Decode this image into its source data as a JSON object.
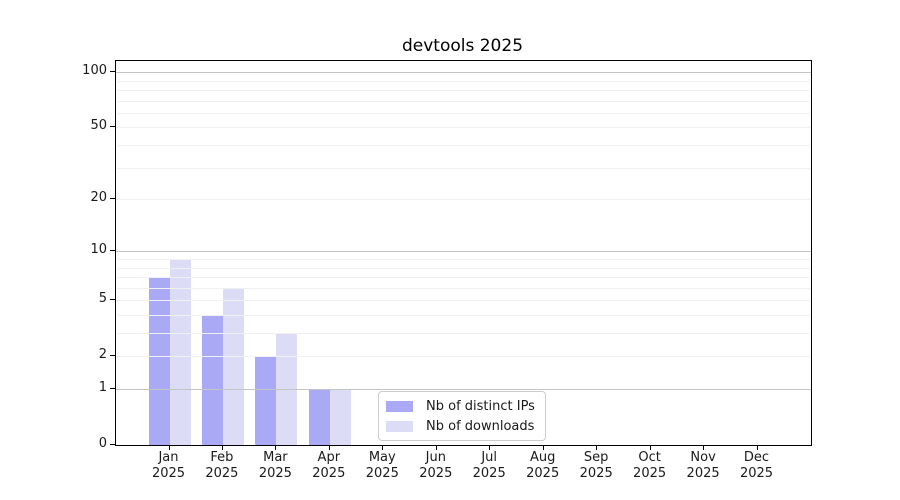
{
  "chart_data": {
    "type": "bar",
    "title": "devtools 2025",
    "categories": [
      "Jan 2025",
      "Feb 2025",
      "Mar 2025",
      "Apr 2025",
      "May 2025",
      "Jun 2025",
      "Jul 2025",
      "Aug 2025",
      "Sep 2025",
      "Oct 2025",
      "Nov 2025",
      "Dec 2025"
    ],
    "series": [
      {
        "name": "Nb of distinct IPs",
        "color": "#a9a9f5",
        "values": [
          7,
          4,
          2,
          1,
          0,
          0,
          0,
          0,
          0,
          0,
          0,
          0
        ]
      },
      {
        "name": "Nb of downloads",
        "color": "#dcdcf6",
        "values": [
          9,
          6,
          3,
          1,
          0,
          0,
          0,
          0,
          0,
          0,
          0,
          0
        ]
      }
    ],
    "xlabel": "",
    "ylabel": "",
    "yscale": "log1p",
    "ylim": [
      0,
      115
    ],
    "ytick_values": [
      0,
      1,
      2,
      5,
      10,
      20,
      50,
      100
    ],
    "ytick_labels": [
      "0",
      "1",
      "2",
      "5",
      "10",
      "20",
      "50",
      "100"
    ],
    "major_gridline_values": [
      1,
      10,
      100
    ],
    "minor_gridline_values": [
      2,
      3,
      4,
      5,
      6,
      7,
      8,
      9,
      20,
      30,
      40,
      50,
      60,
      70,
      80,
      90
    ],
    "grid": true,
    "legend_position": "lower center"
  },
  "colors": {
    "background": "#ffffff",
    "spine": "#000000",
    "major_grid": "#c4c4c4",
    "minor_grid": "#f0f0f0",
    "text": "#1a1a1a",
    "legend_border": "#cccccc"
  }
}
